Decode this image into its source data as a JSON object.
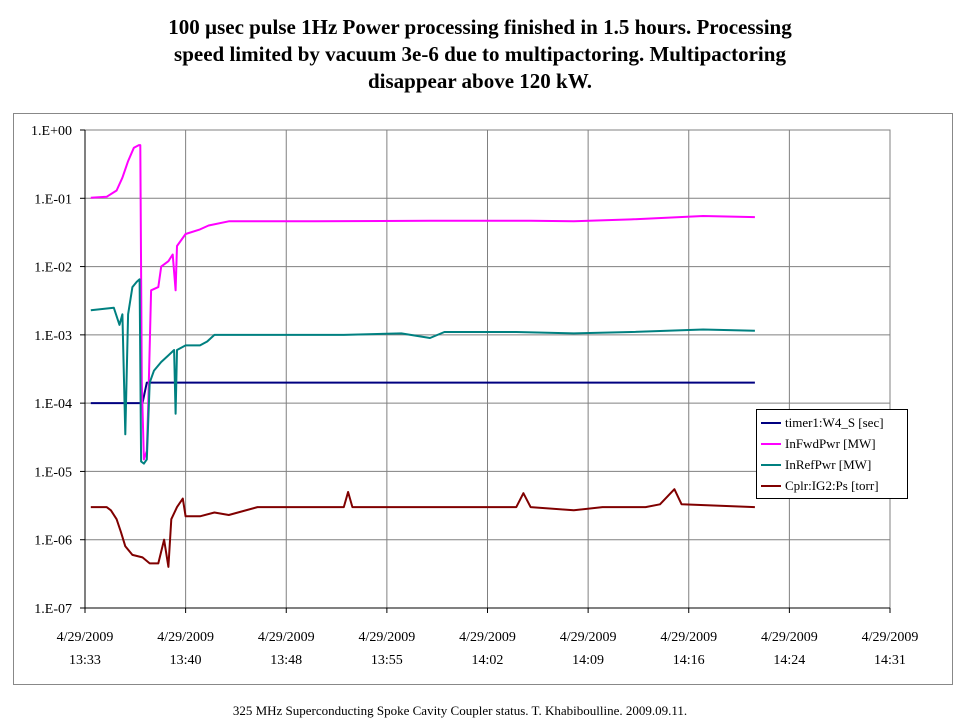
{
  "title": {
    "line1": "100 µsec pulse 1Hz  Power processing finished in 1.5 hours. Processing",
    "line2": "speed limited by vacuum 3e-6 due to multipactoring. Multipactoring",
    "line3": "disappear above 120 kW."
  },
  "footer": "325 MHz Superconducting Spoke Cavity Coupler status. T. Khabiboulline. 2009.09.11.",
  "chart_data": {
    "type": "line",
    "yscale": "log",
    "ylim": [
      1e-07,
      1
    ],
    "xlim_minutes": [
      0,
      56
    ],
    "grid": true,
    "legend_position": "right",
    "y_ticks": [
      "1.E+00",
      "1.E-01",
      "1.E-02",
      "1.E-03",
      "1.E-04",
      "1.E-05",
      "1.E-06",
      "1.E-07"
    ],
    "x_ticks": [
      {
        "date": "4/29/2009",
        "time": "13:33"
      },
      {
        "date": "4/29/2009",
        "time": "13:40"
      },
      {
        "date": "4/29/2009",
        "time": "13:48"
      },
      {
        "date": "4/29/2009",
        "time": "13:55"
      },
      {
        "date": "4/29/2009",
        "time": "14:02"
      },
      {
        "date": "4/29/2009",
        "time": "14:09"
      },
      {
        "date": "4/29/2009",
        "time": "14:16"
      },
      {
        "date": "4/29/2009",
        "time": "14:24"
      },
      {
        "date": "4/29/2009",
        "time": "14:31"
      }
    ],
    "series": [
      {
        "name": "timer1:W4_S [sec]",
        "color": "#000080",
        "points": [
          [
            0.4,
            0.0001
          ],
          [
            4.0,
            0.0001
          ],
          [
            4.3,
            0.0002
          ],
          [
            46.6,
            0.0002
          ]
        ]
      },
      {
        "name": "InFwdPwr [MW]",
        "color": "#ff00ff",
        "points": [
          [
            0.4,
            0.102
          ],
          [
            1.5,
            0.105
          ],
          [
            2.2,
            0.13
          ],
          [
            2.6,
            0.2
          ],
          [
            3.0,
            0.35
          ],
          [
            3.4,
            0.55
          ],
          [
            3.75,
            0.6
          ],
          [
            3.85,
            0.6
          ],
          [
            3.95,
            0.0002
          ],
          [
            4.1,
            1.5e-05
          ],
          [
            4.3,
            2e-05
          ],
          [
            4.4,
            0.0001
          ],
          [
            4.6,
            0.0045
          ],
          [
            5.1,
            0.005
          ],
          [
            5.3,
            0.01
          ],
          [
            5.8,
            0.012
          ],
          [
            6.1,
            0.015
          ],
          [
            6.3,
            0.0045
          ],
          [
            6.4,
            0.02
          ],
          [
            7.0,
            0.03
          ],
          [
            8.0,
            0.035
          ],
          [
            8.6,
            0.04
          ],
          [
            10.0,
            0.046
          ],
          [
            16.0,
            0.046
          ],
          [
            24.0,
            0.047
          ],
          [
            31.0,
            0.047
          ],
          [
            34.0,
            0.046
          ],
          [
            38.0,
            0.049
          ],
          [
            43.0,
            0.055
          ],
          [
            46.6,
            0.053
          ]
        ]
      },
      {
        "name": "InRefPwr [MW]",
        "color": "#008080",
        "points": [
          [
            0.4,
            0.0023
          ],
          [
            2.0,
            0.0025
          ],
          [
            2.4,
            0.0014
          ],
          [
            2.6,
            0.002
          ],
          [
            2.8,
            3.5e-05
          ],
          [
            3.0,
            0.002
          ],
          [
            3.3,
            0.005
          ],
          [
            3.6,
            0.006
          ],
          [
            3.8,
            0.0065
          ],
          [
            3.9,
            1.4e-05
          ],
          [
            4.1,
            1.3e-05
          ],
          [
            4.3,
            1.5e-05
          ],
          [
            4.5,
            0.0002
          ],
          [
            4.8,
            0.0003
          ],
          [
            5.3,
            0.0004
          ],
          [
            5.8,
            0.0005
          ],
          [
            6.2,
            0.0006
          ],
          [
            6.3,
            7e-05
          ],
          [
            6.4,
            0.0006
          ],
          [
            7.0,
            0.0007
          ],
          [
            8.0,
            0.0007
          ],
          [
            8.5,
            0.0008
          ],
          [
            9.0,
            0.001
          ],
          [
            18.0,
            0.001
          ],
          [
            22.0,
            0.00105
          ],
          [
            24.0,
            0.0009
          ],
          [
            25.0,
            0.0011
          ],
          [
            30.0,
            0.0011
          ],
          [
            34.0,
            0.00105
          ],
          [
            38.0,
            0.0011
          ],
          [
            43.0,
            0.0012
          ],
          [
            46.6,
            0.00115
          ]
        ]
      },
      {
        "name": "Cplr:IG2:Ps [torr]",
        "color": "#800000",
        "points": [
          [
            0.4,
            3e-06
          ],
          [
            1.5,
            3e-06
          ],
          [
            1.8,
            2.7e-06
          ],
          [
            2.2,
            2e-06
          ],
          [
            2.5,
            1.3e-06
          ],
          [
            2.8,
            8e-07
          ],
          [
            3.3,
            6e-07
          ],
          [
            4.0,
            5.5e-07
          ],
          [
            4.5,
            4.5e-07
          ],
          [
            5.1,
            4.5e-07
          ],
          [
            5.5,
            1e-06
          ],
          [
            5.8,
            4e-07
          ],
          [
            6.0,
            2e-06
          ],
          [
            6.4,
            3e-06
          ],
          [
            6.8,
            4e-06
          ],
          [
            7.0,
            2.2e-06
          ],
          [
            8.0,
            2.2e-06
          ],
          [
            9.0,
            2.5e-06
          ],
          [
            10.0,
            2.3e-06
          ],
          [
            12.0,
            3e-06
          ],
          [
            18.0,
            3e-06
          ],
          [
            18.3,
            5e-06
          ],
          [
            18.6,
            3e-06
          ],
          [
            26.0,
            3e-06
          ],
          [
            30.0,
            3e-06
          ],
          [
            30.5,
            4.8e-06
          ],
          [
            31.0,
            3e-06
          ],
          [
            34.0,
            2.7e-06
          ],
          [
            36.0,
            3e-06
          ],
          [
            39.0,
            3e-06
          ],
          [
            40.0,
            3.3e-06
          ],
          [
            41.0,
            5.5e-06
          ],
          [
            41.5,
            3.3e-06
          ],
          [
            46.6,
            3e-06
          ]
        ]
      }
    ]
  }
}
